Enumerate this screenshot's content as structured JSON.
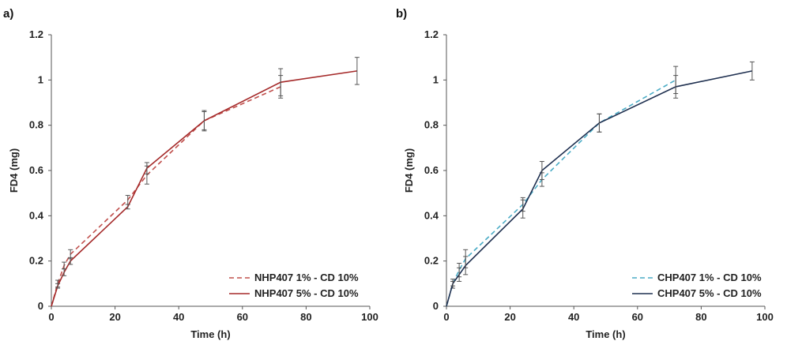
{
  "chart_data": [
    {
      "panel_label": "a)",
      "type": "line",
      "xlabel": "Time (h)",
      "ylabel": "FD4 (mg)",
      "xlim": [
        0,
        100
      ],
      "ylim": [
        0,
        1.2
      ],
      "x_ticks": [
        "0",
        "20",
        "40",
        "60",
        "80",
        "100"
      ],
      "y_ticks": [
        "0",
        "0.2",
        "0.4",
        "0.6",
        "0.8",
        "1",
        "1.2"
      ],
      "grid": false,
      "legend_position": "bottom-right",
      "series": [
        {
          "name": "NHP407 1% - CD 10%",
          "style": "dashed",
          "color": "#c0504d",
          "x": [
            0,
            2,
            4,
            6,
            24,
            30,
            48,
            72
          ],
          "y": [
            0,
            0.1,
            0.18,
            0.23,
            0.47,
            0.58,
            0.82,
            0.97
          ],
          "err": [
            0,
            0.015,
            0.015,
            0.02,
            0.02,
            0.04,
            0.045,
            0.05
          ]
        },
        {
          "name": "NHP407 5% - CD 10%",
          "style": "solid",
          "color": "#a52a2a",
          "x": [
            0,
            2,
            4,
            6,
            24,
            30,
            48,
            72,
            96
          ],
          "y": [
            0,
            0.09,
            0.15,
            0.2,
            0.44,
            0.61,
            0.82,
            0.99,
            1.04
          ],
          "err": [
            0,
            0.01,
            0.015,
            0.015,
            0.01,
            0.025,
            0.04,
            0.06,
            0.06
          ]
        }
      ]
    },
    {
      "panel_label": "b)",
      "type": "line",
      "xlabel": "Time (h)",
      "ylabel": "FD4 (mg)",
      "xlim": [
        0,
        100
      ],
      "ylim": [
        0,
        1.2
      ],
      "x_ticks": [
        "0",
        "20",
        "40",
        "60",
        "80",
        "100"
      ],
      "y_ticks": [
        "0",
        "0.2",
        "0.4",
        "0.6",
        "0.8",
        "1",
        "1.2"
      ],
      "grid": false,
      "legend_position": "bottom-right",
      "series": [
        {
          "name": "CHP407 1% - CD 10%",
          "style": "dashed",
          "color": "#4bacc6",
          "x": [
            0,
            2,
            4,
            6,
            24,
            30,
            48,
            72
          ],
          "y": [
            0,
            0.1,
            0.16,
            0.21,
            0.45,
            0.56,
            0.81,
            1.0
          ],
          "err": [
            0,
            0.02,
            0.03,
            0.04,
            0.03,
            0.03,
            0.04,
            0.06
          ]
        },
        {
          "name": "CHP407 5% - CD 10%",
          "style": "solid",
          "color": "#1f3050",
          "x": [
            0,
            2,
            4,
            6,
            24,
            30,
            48,
            72,
            96
          ],
          "y": [
            0,
            0.1,
            0.14,
            0.18,
            0.43,
            0.6,
            0.81,
            0.97,
            1.04
          ],
          "err": [
            0,
            0.01,
            0.03,
            0.04,
            0.04,
            0.04,
            0.04,
            0.05,
            0.04
          ]
        }
      ]
    }
  ]
}
